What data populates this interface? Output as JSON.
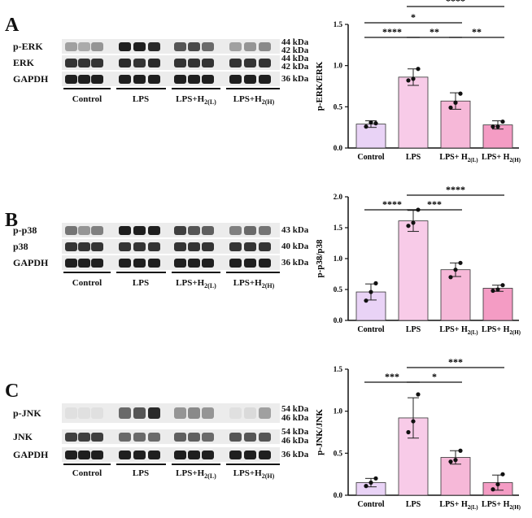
{
  "panels": [
    {
      "letter": "A",
      "blot": {
        "rows": [
          {
            "label": "p-ERK",
            "kda": [
              "44 kDa",
              "42 kDa"
            ]
          },
          {
            "label": "ERK",
            "kda": [
              "44 kDa",
              "42 kDa"
            ]
          },
          {
            "label": "GAPDH",
            "kda": [
              "36 kDa"
            ]
          }
        ],
        "groups": [
          "Control",
          "LPS",
          "LPS+H",
          "LPS+H"
        ],
        "group_subs": [
          "",
          "",
          "2(L)",
          "2(H)"
        ]
      }
    },
    {
      "letter": "B",
      "blot": {
        "rows": [
          {
            "label": "p-p38",
            "kda": [
              "43 kDa"
            ]
          },
          {
            "label": "p38",
            "kda": [
              "40 kDa"
            ]
          },
          {
            "label": "GAPDH",
            "kda": [
              "36 kDa"
            ]
          }
        ],
        "groups": [
          "Control",
          "LPS",
          "LPS+H",
          "LPS+H"
        ],
        "group_subs": [
          "",
          "",
          "2(L)",
          "2(H)"
        ]
      }
    },
    {
      "letter": "C",
      "blot": {
        "rows": [
          {
            "label": "p-JNK",
            "kda": [
              "54 kDa",
              "46 kDa"
            ]
          },
          {
            "label": "JNK",
            "kda": [
              "54 kDa",
              "46 kDa"
            ]
          },
          {
            "label": "GAPDH",
            "kda": [
              "36 kDa"
            ]
          }
        ],
        "groups": [
          "Control",
          "LPS",
          "LPS+H",
          "LPS+H"
        ],
        "group_subs": [
          "",
          "",
          "2(L)",
          "2(H)"
        ]
      }
    }
  ],
  "colors": {
    "bars": [
      "#e9d3f6",
      "#f8cbe8",
      "#f6b8d8",
      "#f49cc4"
    ],
    "bar_stroke": "#333333",
    "band_strong": "#1a1a1a",
    "band_weak": "#9a9a9a"
  },
  "chart_data": [
    {
      "type": "bar",
      "ylabel": "p-ERK/ERK",
      "categories": [
        "Control",
        "LPS",
        "LPS+ H",
        "LPS+ H"
      ],
      "category_subs": [
        "",
        "",
        "2(L)",
        "2(H)"
      ],
      "values": [
        0.29,
        0.86,
        0.57,
        0.28
      ],
      "errors": [
        0.04,
        0.1,
        0.1,
        0.05
      ],
      "points": [
        [
          0.26,
          0.31,
          0.3
        ],
        [
          0.82,
          0.84,
          0.96
        ],
        [
          0.49,
          0.55,
          0.66
        ],
        [
          0.26,
          0.26,
          0.32
        ]
      ],
      "ylim": [
        0,
        1.5
      ],
      "yticks": [
        "0.0",
        "0.5",
        "1.0",
        "1.5"
      ],
      "ytick_values": [
        0,
        0.5,
        1.0,
        1.5
      ],
      "significance": [
        {
          "from": 0,
          "to": 1,
          "label": "****",
          "level": 0
        },
        {
          "from": 1,
          "to": 2,
          "label": "**",
          "level": 0
        },
        {
          "from": 2,
          "to": 3,
          "label": "**",
          "level": 0
        },
        {
          "from": 0,
          "to": 2,
          "label": "*",
          "level": 1
        },
        {
          "from": 1,
          "to": 3,
          "label": "****",
          "level": 2
        }
      ]
    },
    {
      "type": "bar",
      "ylabel": "p-p38/p38",
      "categories": [
        "Control",
        "LPS",
        "LPS+ H",
        "LPS+ H"
      ],
      "category_subs": [
        "",
        "",
        "2(L)",
        "2(H)"
      ],
      "values": [
        0.46,
        1.61,
        0.82,
        0.52
      ],
      "errors": [
        0.13,
        0.17,
        0.11,
        0.05
      ],
      "points": [
        [
          0.32,
          0.46,
          0.6
        ],
        [
          1.53,
          1.58,
          1.79
        ],
        [
          0.7,
          0.82,
          0.93
        ],
        [
          0.48,
          0.5,
          0.57
        ]
      ],
      "ylim": [
        0,
        2.0
      ],
      "yticks": [
        "0.0",
        "0.5",
        "1.0",
        "1.5",
        "2.0"
      ],
      "ytick_values": [
        0,
        0.5,
        1.0,
        1.5,
        2.0
      ],
      "significance": [
        {
          "from": 0,
          "to": 1,
          "label": "****",
          "level": 0
        },
        {
          "from": 1,
          "to": 2,
          "label": "***",
          "level": 0
        },
        {
          "from": 1,
          "to": 3,
          "label": "****",
          "level": 1
        }
      ]
    },
    {
      "type": "bar",
      "ylabel": "p-JNK/JNK",
      "categories": [
        "Control",
        "LPS",
        "LPS+ H",
        "LPS+ H"
      ],
      "category_subs": [
        "",
        "",
        "2(L)",
        "2(H)"
      ],
      "values": [
        0.15,
        0.92,
        0.45,
        0.15
      ],
      "errors": [
        0.05,
        0.24,
        0.08,
        0.09
      ],
      "points": [
        [
          0.11,
          0.15,
          0.2
        ],
        [
          0.75,
          0.88,
          1.2
        ],
        [
          0.4,
          0.42,
          0.53
        ],
        [
          0.07,
          0.13,
          0.25
        ]
      ],
      "ylim": [
        0,
        1.5
      ],
      "yticks": [
        "0.0",
        "0.5",
        "1.0",
        "1.5"
      ],
      "ytick_values": [
        0,
        0.5,
        1.0,
        1.5
      ],
      "significance": [
        {
          "from": 0,
          "to": 1,
          "label": "***",
          "level": 0
        },
        {
          "from": 1,
          "to": 2,
          "label": "*",
          "level": 0
        },
        {
          "from": 1,
          "to": 3,
          "label": "***",
          "level": 1
        }
      ]
    }
  ]
}
